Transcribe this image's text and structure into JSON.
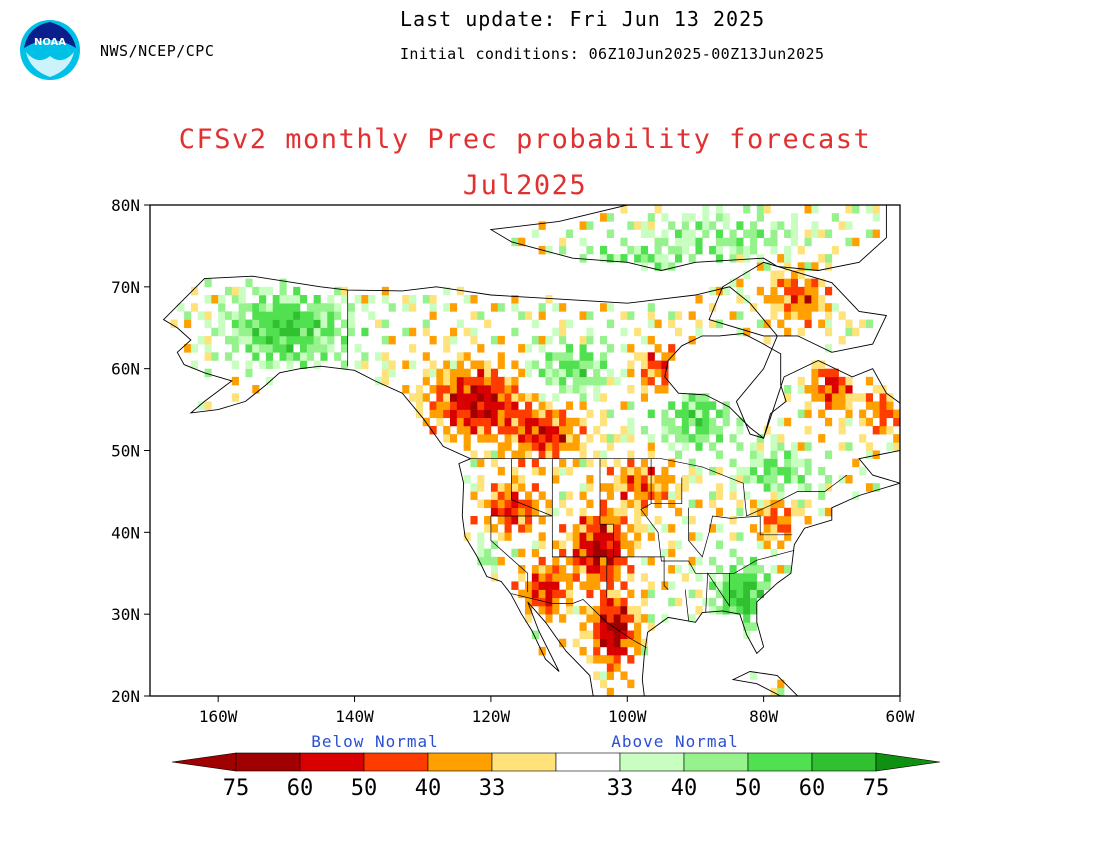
{
  "header": {
    "org": "NWS/NCEP/CPC",
    "last_update": "Last update: Fri Jun 13 2025",
    "initial_conditions": "Initial conditions: 06Z10Jun2025-00Z13Jun2025",
    "logo_text": "NOAA"
  },
  "map": {
    "title_line1": "CFSv2 monthly Prec probability forecast",
    "title_line2": "Jul2025",
    "lat_labels": [
      "80N",
      "70N",
      "60N",
      "50N",
      "40N",
      "30N",
      "20N"
    ],
    "lon_labels": [
      "160W",
      "140W",
      "120W",
      "100W",
      "80W",
      "60W"
    ],
    "extent": {
      "lon": [
        -170,
        -60
      ],
      "lat": [
        20,
        80
      ]
    }
  },
  "legend": {
    "below_label": "Below Normal",
    "above_label": "Above Normal",
    "values": [
      "75",
      "60",
      "50",
      "40",
      "33",
      "33",
      "40",
      "50",
      "60",
      "75"
    ],
    "below_colors": [
      "#a00000",
      "#d80000",
      "#ff3c00",
      "#ff9f00",
      "#ffe27a"
    ],
    "above_colors": [
      "#c8ffc0",
      "#96f28c",
      "#50e050",
      "#30c030",
      "#109010"
    ]
  },
  "colors": {
    "title": "#e03030",
    "legend_text": "#2a4fd0"
  }
}
